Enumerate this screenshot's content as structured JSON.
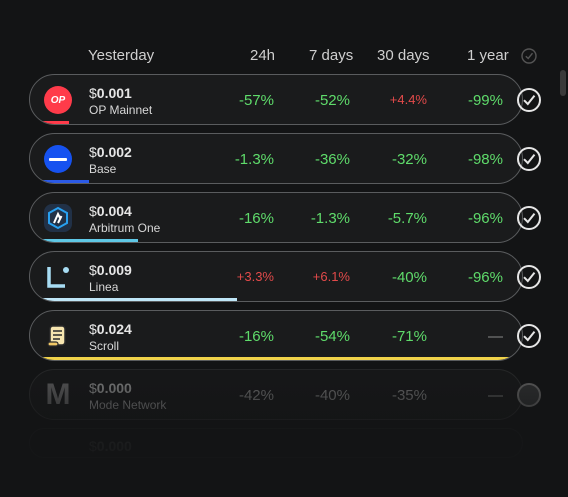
{
  "header": {
    "yesterday": "Yesterday",
    "col_24h": "24h",
    "col_7d": "7 days",
    "col_30d": "30 days",
    "col_1y": "1 year"
  },
  "rows": [
    {
      "currency": "$",
      "price": "0.001",
      "name": "OP Mainnet",
      "logo_text": "OP",
      "logo_color": "#ff3b4a",
      "d24": "-57%",
      "d7": "-52%",
      "d30": "+4.4%",
      "d1y": "-99%",
      "bar_color": "#ff3b4a",
      "bar_fraction": 0.08
    },
    {
      "currency": "$",
      "price": "0.002",
      "name": "Base",
      "logo_color": "#1652f0",
      "d24": "-1.3%",
      "d7": "-36%",
      "d30": "-32%",
      "d1y": "-98%",
      "bar_color": "#2b5ae6",
      "bar_fraction": 0.12
    },
    {
      "currency": "$",
      "price": "0.004",
      "name": "Arbitrum One",
      "logo_color": "#28a0f0",
      "d24": "-16%",
      "d7": "-1.3%",
      "d30": "-5.7%",
      "d1y": "-96%",
      "bar_color": "#5fc8e6",
      "bar_fraction": 0.22
    },
    {
      "currency": "$",
      "price": "0.009",
      "name": "Linea",
      "logo_color": "#a7dcf3",
      "d24": "+3.3%",
      "d7": "+6.1%",
      "d30": "-40%",
      "d1y": "-96%",
      "bar_color": "#bfe6f7",
      "bar_fraction": 0.42
    },
    {
      "currency": "$",
      "price": "0.024",
      "name": "Scroll",
      "logo_color": "#f5d27a",
      "d24": "-16%",
      "d7": "-54%",
      "d30": "-71%",
      "d1y": "—",
      "bar_color": "#f1d34a",
      "bar_fraction": 1.0
    },
    {
      "currency": "$",
      "price": "0.000",
      "name": "Mode Network",
      "logo_text": "M",
      "d24": "-42%",
      "d7": "-40%",
      "d30": "-35%",
      "d1y": "—"
    },
    {
      "currency": "$",
      "price": "0.000"
    }
  ]
}
